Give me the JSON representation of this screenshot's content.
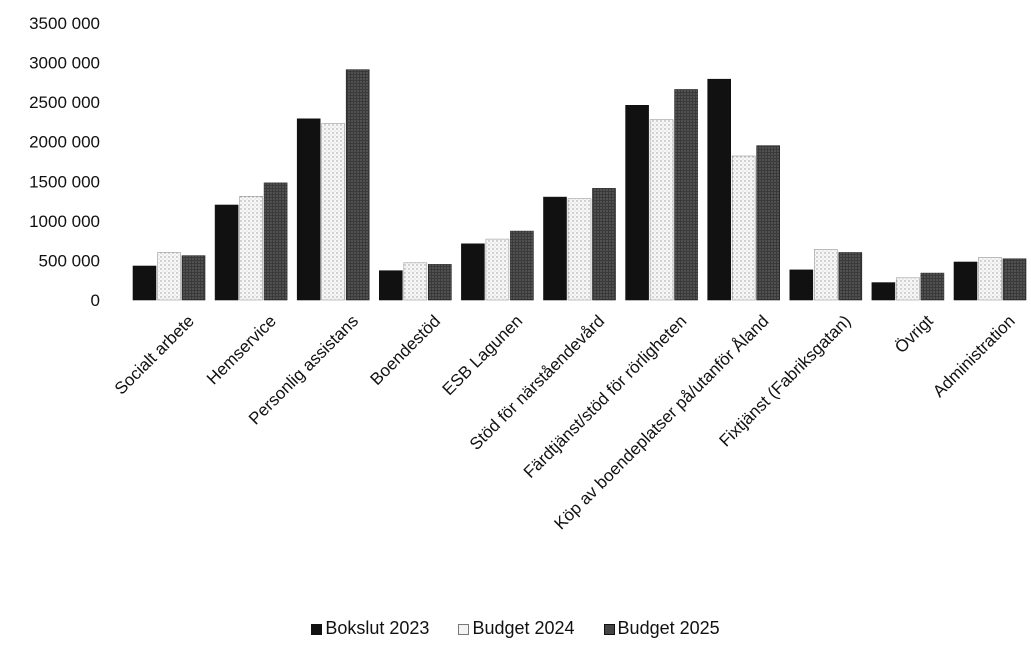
{
  "chart_data": {
    "type": "bar",
    "title": "",
    "xlabel": "",
    "ylabel": "",
    "ylim": [
      0,
      3500000
    ],
    "y_ticks": [
      0,
      500000,
      1000000,
      1500000,
      2000000,
      2500000,
      3000000,
      3500000
    ],
    "y_tick_labels": [
      "0",
      "500 000",
      "1000 000",
      "1500 000",
      "2000 000",
      "2500 000",
      "3000 000",
      "3500 000"
    ],
    "grid": false,
    "legend_position": "bottom",
    "categories": [
      "Socialt arbete",
      "Hemservice",
      "Personlig assistans",
      "Boendestöd",
      "ESB Lagunen",
      "Stöd för närståendevård",
      "Färdtjänst/stöd för rörligheten",
      "Köp av boendeplatser på/utanför Åland",
      "Fixtjänst (Fabriksgatan)",
      "Övrigt",
      "Administration"
    ],
    "series": [
      {
        "name": "Bokslut 2023",
        "color": "#111111",
        "values": [
          430000,
          1200000,
          2290000,
          370000,
          710000,
          1300000,
          2460000,
          2790000,
          380000,
          220000,
          480000
        ]
      },
      {
        "name": "Budget 2024",
        "color": "#f3f3f3",
        "values": [
          600000,
          1310000,
          2230000,
          470000,
          770000,
          1280000,
          2280000,
          1820000,
          640000,
          280000,
          540000
        ]
      },
      {
        "name": "Budget 2025",
        "color": "#444444",
        "values": [
          560000,
          1480000,
          2910000,
          450000,
          870000,
          1410000,
          2660000,
          1950000,
          600000,
          340000,
          520000
        ]
      }
    ]
  }
}
